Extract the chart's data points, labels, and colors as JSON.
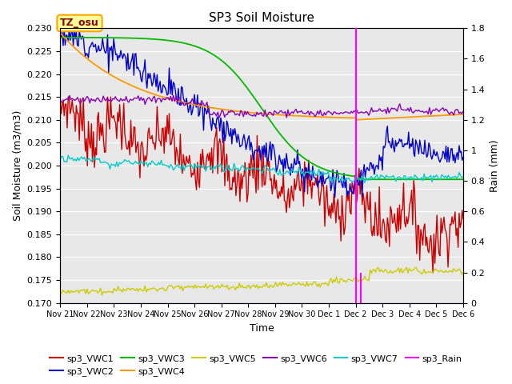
{
  "title": "SP3 Soil Moisture",
  "xlabel": "Time",
  "ylabel_left": "Soil Moisture (m3/m3)",
  "ylabel_right": "Rain (mm)",
  "ylim_left": [
    0.17,
    0.23
  ],
  "ylim_right": [
    0.0,
    1.8
  ],
  "annotation_text": "TZ_osu",
  "background_color": "#e8e8e8",
  "line_colors": {
    "VWC1": "#cc0000",
    "VWC2": "#0000cc",
    "VWC3": "#00bb00",
    "VWC4": "#ff9900",
    "VWC5": "#cccc00",
    "VWC6": "#8800bb",
    "VWC7": "#00cccc",
    "Rain": "#ff00ff"
  },
  "xtick_labels": [
    "Nov 21",
    "Nov 22",
    "Nov 23",
    "Nov 24",
    "Nov 25",
    "Nov 26",
    "Nov 27",
    "Nov 28",
    "Nov 29",
    "Nov 30",
    "Dec 1",
    "Dec 2",
    "Dec 3",
    "Dec 4",
    "Dec 5",
    "Dec 6"
  ],
  "yticks_left": [
    0.17,
    0.175,
    0.18,
    0.185,
    0.19,
    0.195,
    0.2,
    0.205,
    0.21,
    0.215,
    0.22,
    0.225,
    0.23
  ],
  "yticks_right": [
    0.0,
    0.2,
    0.4,
    0.6,
    0.8,
    1.0,
    1.2,
    1.4,
    1.6,
    1.8
  ]
}
